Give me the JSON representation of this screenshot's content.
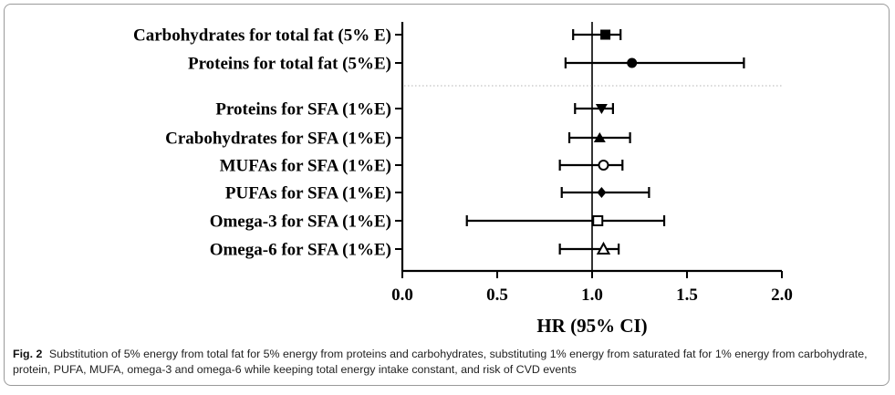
{
  "caption": {
    "label": "Fig. 2",
    "text": "Substitution of 5% energy from total fat for 5% energy from proteins and carbohydrates, substituting 1% energy from saturated fat for 1% energy from carbohydrate, protein, PUFA, MUFA, omega-3 and omega-6 while keeping total energy intake constant, and risk of CVD events"
  },
  "chart_data": {
    "type": "forest",
    "title": "",
    "xlabel": "HR (95% CI)",
    "xlim": [
      0.0,
      2.0
    ],
    "x_ticks": [
      "0.0",
      "0.5",
      "1.0",
      "1.5",
      "2.0"
    ],
    "reference_line": 1.0,
    "groups_separated_by": "dotted line",
    "rows": [
      {
        "label": "Carbohydrates for total fat (5% E)",
        "hr": 1.07,
        "lower": 0.9,
        "upper": 1.15,
        "marker": "filled-square"
      },
      {
        "label": "Proteins for total fat (5%E)",
        "hr": 1.21,
        "lower": 0.86,
        "upper": 1.8,
        "marker": "filled-circle"
      },
      {
        "label": "Proteins for SFA (1%E)",
        "hr": 1.05,
        "lower": 0.91,
        "upper": 1.11,
        "marker": "filled-triangle-down"
      },
      {
        "label": "Crabohydrates for SFA (1%E)",
        "hr": 1.04,
        "lower": 0.88,
        "upper": 1.2,
        "marker": "filled-triangle-up"
      },
      {
        "label": "MUFAs for SFA (1%E)",
        "hr": 1.06,
        "lower": 0.83,
        "upper": 1.16,
        "marker": "open-circle"
      },
      {
        "label": "PUFAs for SFA (1%E)",
        "hr": 1.05,
        "lower": 0.84,
        "upper": 1.3,
        "marker": "filled-diamond"
      },
      {
        "label": "Omega-3 for SFA (1%E)",
        "hr": 1.03,
        "lower": 0.34,
        "upper": 1.38,
        "marker": "open-square"
      },
      {
        "label": "Omega-6 for SFA (1%E)",
        "hr": 1.06,
        "lower": 0.83,
        "upper": 1.14,
        "marker": "open-triangle-up"
      }
    ]
  }
}
